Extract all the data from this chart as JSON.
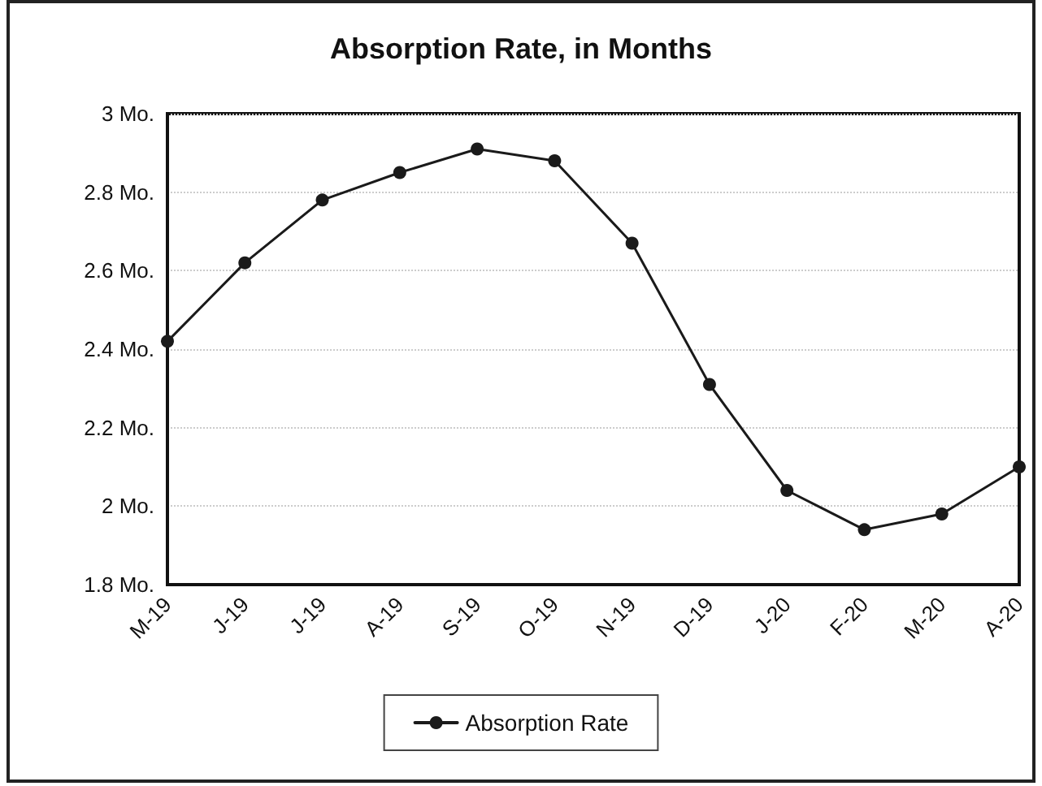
{
  "chart_data": {
    "type": "line",
    "title": "Absorption Rate, in Months",
    "categories": [
      "M-19",
      "J-19",
      "J-19",
      "A-19",
      "S-19",
      "O-19",
      "N-19",
      "D-19",
      "J-20",
      "F-20",
      "M-20",
      "A-20"
    ],
    "series": [
      {
        "name": "Absorption Rate",
        "color": "#1a1a1a",
        "values": [
          2.42,
          2.62,
          2.78,
          2.85,
          2.91,
          2.88,
          2.67,
          2.31,
          2.04,
          1.94,
          1.98,
          2.1
        ]
      }
    ],
    "ylim": [
      1.8,
      3
    ],
    "yticks": [
      {
        "value": 1.8,
        "label": "1.8 Mo."
      },
      {
        "value": 2,
        "label": "2 Mo."
      },
      {
        "value": 2.2,
        "label": "2.2 Mo."
      },
      {
        "value": 2.4,
        "label": "2.4 Mo."
      },
      {
        "value": 2.6,
        "label": "2.6 Mo."
      },
      {
        "value": 2.8,
        "label": "2.8 Mo."
      },
      {
        "value": 3,
        "label": "3 Mo."
      }
    ],
    "grid": "y",
    "legend": "bottom",
    "marker": "circle",
    "line_style": "solid"
  }
}
